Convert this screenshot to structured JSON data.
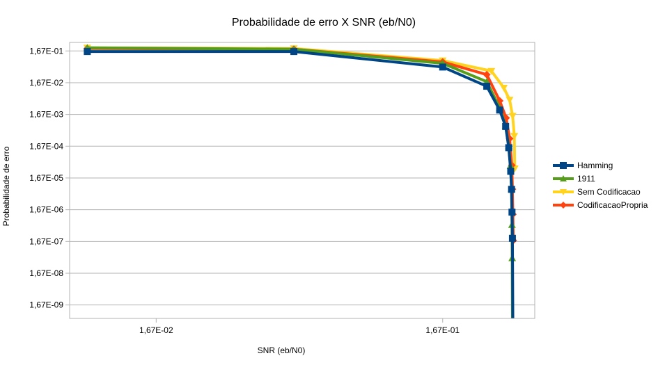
{
  "chart_data": {
    "type": "line",
    "title": "Probabilidade de erro X SNR (eb/N0)",
    "xlabel": "SNR (eb/N0)",
    "ylabel": "Probabilidade de erro",
    "x_scale": "log",
    "y_scale": "log",
    "xlim": [
      0.00833,
      0.35
    ],
    "ylim": [
      6.3e-10,
      0.31
    ],
    "x_ticks": [
      {
        "value": 0.0167,
        "label": "1,67E-02"
      },
      {
        "value": 0.167,
        "label": "1,67E-01"
      }
    ],
    "y_ticks": [
      {
        "value": 0.167,
        "label": "1,67E-01"
      },
      {
        "value": 0.0167,
        "label": "1,67E-02"
      },
      {
        "value": 0.00167,
        "label": "1,67E-03"
      },
      {
        "value": 0.000167,
        "label": "1,67E-04"
      },
      {
        "value": 1.67e-05,
        "label": "1,67E-05"
      },
      {
        "value": 1.67e-06,
        "label": "1,67E-06"
      },
      {
        "value": 1.67e-07,
        "label": "1,67E-07"
      },
      {
        "value": 1.67e-08,
        "label": "1,67E-08"
      },
      {
        "value": 1.67e-09,
        "label": "1,67E-09"
      }
    ],
    "grid": "horizontal",
    "legend_position": "right",
    "series": [
      {
        "name": "Sem Codificacao",
        "color": "#ffd320",
        "marker": "triangle-down",
        "x": [
          0.0096,
          0.0505,
          0.167,
          0.247,
          0.273,
          0.286,
          0.293,
          0.297,
          0.298
        ],
        "y": [
          0.21,
          0.2,
          0.083,
          0.039,
          0.0115,
          0.0048,
          0.0015,
          0.00035,
          3.3e-05
        ]
      },
      {
        "name": "CodificacaoPropria",
        "color": "#ff420e",
        "marker": "diamond",
        "x": [
          0.0096,
          0.0505,
          0.167,
          0.238,
          0.264,
          0.278,
          0.286,
          0.291,
          0.2925,
          0.2935,
          0.2945
        ],
        "y": [
          0.2,
          0.19,
          0.075,
          0.03,
          0.0045,
          0.0013,
          0.00029,
          4.2e-05,
          7.4e-06,
          1.2e-06,
          1.8e-07
        ]
      },
      {
        "name": "1911",
        "color": "#579d1c",
        "marker": "triangle-up",
        "x": [
          0.0096,
          0.0505,
          0.167,
          0.238,
          0.264,
          0.277,
          0.284,
          0.288,
          0.2905,
          0.2915,
          0.292,
          0.2925
        ],
        "y": [
          0.21,
          0.19,
          0.068,
          0.018,
          0.0027,
          0.00074,
          0.00017,
          4e-05,
          7.5e-06,
          5.6e-07,
          5e-08,
          6.3e-10
        ]
      },
      {
        "name": "Hamming",
        "color": "#004586",
        "marker": "square",
        "x": [
          0.0096,
          0.0505,
          0.167,
          0.238,
          0.264,
          0.277,
          0.284,
          0.2885,
          0.2905,
          0.2915,
          0.2925,
          0.2935
        ],
        "y": [
          0.16,
          0.16,
          0.052,
          0.0129,
          0.0023,
          0.0007,
          0.00015,
          2.7e-05,
          7.3e-06,
          1.4e-06,
          2.1e-07,
          6.3e-10
        ]
      }
    ],
    "legend_order": [
      "Hamming",
      "1911",
      "Sem Codificacao",
      "CodificacaoPropria"
    ]
  }
}
